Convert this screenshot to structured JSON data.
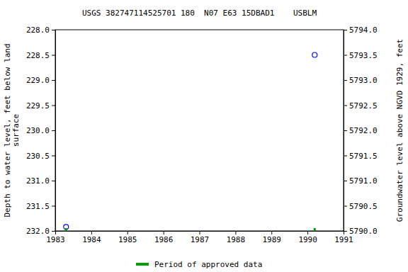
{
  "chart_data": {
    "type": "scatter",
    "title": "USGS 382747114525701 180  N07 E63 15DBAD1    USBLM",
    "y_label": "Depth to water level, feet below land surface",
    "y2_label": "Groundwater level above NGVD 1929, feet",
    "x": [
      1983.3,
      1990.2
    ],
    "series": [
      {
        "color": "#0000ff",
        "marker": "circle",
        "values": [
          231.92,
          228.5
        ]
      },
      {
        "name": "Period of approved data",
        "type": "rug",
        "color": "#00a000",
        "x": [
          1983.3,
          1990.2
        ]
      }
    ],
    "xlim": [
      1983,
      1991
    ],
    "xticks": [
      1983,
      1984,
      1985,
      1986,
      1987,
      1988,
      1989,
      1990,
      1991
    ],
    "ylim": [
      232,
      228
    ],
    "yticks": [
      {
        "value": 228,
        "label": "228.0"
      },
      228.5,
      {
        "value": 229,
        "label": "229.0"
      },
      229.5,
      {
        "value": 230,
        "label": "230.0"
      },
      230.5,
      {
        "value": 231,
        "label": "231.0"
      },
      231.5,
      {
        "value": 232,
        "label": "232.0"
      }
    ],
    "y2lim": [
      5790,
      5794
    ],
    "y2ticks": [
      {
        "value": 5794,
        "label": "5794.0"
      },
      5793.5,
      {
        "value": 5793,
        "label": "5793.0"
      },
      5792.5,
      {
        "value": 5792,
        "label": "5792.0"
      },
      5791.5,
      {
        "value": 5791,
        "label": "5791.0"
      },
      5790.5,
      {
        "value": 5790,
        "label": "5790.0"
      }
    ],
    "grid": false,
    "legend": "bottom"
  }
}
